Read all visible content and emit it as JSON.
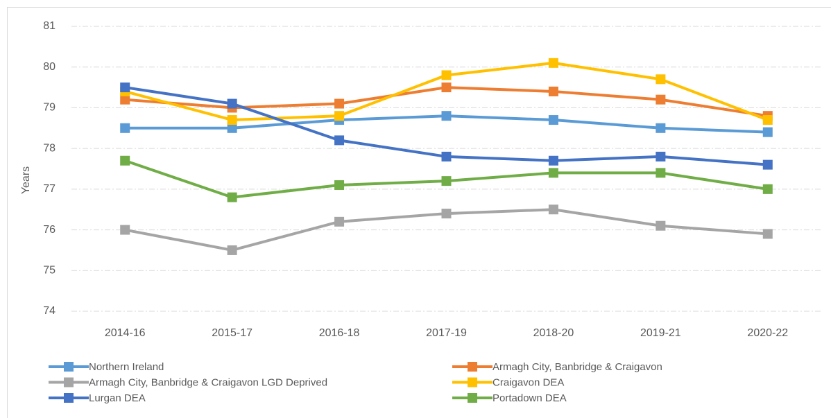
{
  "chart_data": {
    "type": "line",
    "y_label": "Years",
    "categories": [
      "2014-16",
      "2015-17",
      "2016-18",
      "2017-19",
      "2018-20",
      "2019-21",
      "2020-22"
    ],
    "series": [
      {
        "name": "Northern Ireland",
        "color": "#5b9bd5",
        "values": [
          78.5,
          78.5,
          78.7,
          78.8,
          78.7,
          78.5,
          78.4
        ]
      },
      {
        "name": "Armagh City, Banbridge & Craigavon",
        "color": "#ed7d31",
        "values": [
          79.2,
          79.0,
          79.1,
          79.5,
          79.4,
          79.2,
          78.8
        ]
      },
      {
        "name": "Armagh City, Banbridge & Craigavon LGD Deprived",
        "color": "#a5a5a5",
        "values": [
          76.0,
          75.5,
          76.2,
          76.4,
          76.5,
          76.1,
          75.9
        ]
      },
      {
        "name": "Craigavon DEA",
        "color": "#ffc000",
        "values": [
          79.4,
          78.7,
          78.8,
          79.8,
          80.1,
          79.7,
          78.7
        ]
      },
      {
        "name": "Lurgan DEA",
        "color": "#4472c4",
        "values": [
          79.5,
          79.1,
          78.2,
          77.8,
          77.7,
          77.8,
          77.6
        ]
      },
      {
        "name": "Portadown DEA",
        "color": "#70ad47",
        "values": [
          77.7,
          76.8,
          77.1,
          77.2,
          77.4,
          77.4,
          77.0
        ]
      }
    ],
    "ylim": [
      74,
      81
    ],
    "yticks": [
      74,
      75,
      76,
      77,
      78,
      79,
      80,
      81
    ],
    "grid": true,
    "legend": "bottom"
  }
}
